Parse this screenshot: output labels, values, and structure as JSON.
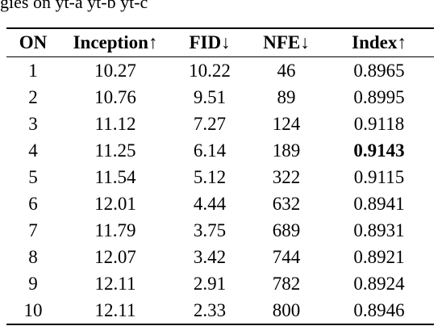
{
  "caption_fragment": "gies on yt-a yt-b yt-c",
  "table": {
    "headers": [
      "ON",
      "Inception↑",
      "FID↓",
      "NFE↓",
      "Index↑"
    ],
    "rows": [
      [
        "1",
        "10.27",
        "10.22",
        "46",
        "0.8965"
      ],
      [
        "2",
        "10.76",
        "9.51",
        "89",
        "0.8995"
      ],
      [
        "3",
        "11.12",
        "7.27",
        "124",
        "0.9118"
      ],
      [
        "4",
        "11.25",
        "6.14",
        "189",
        "0.9143"
      ],
      [
        "5",
        "11.54",
        "5.12",
        "322",
        "0.9115"
      ],
      [
        "6",
        "12.01",
        "4.44",
        "632",
        "0.8941"
      ],
      [
        "7",
        "11.79",
        "3.75",
        "689",
        "0.8931"
      ],
      [
        "8",
        "12.07",
        "3.42",
        "744",
        "0.8921"
      ],
      [
        "9",
        "12.11",
        "2.91",
        "782",
        "0.8924"
      ],
      [
        "10",
        "12.11",
        "2.33",
        "800",
        "0.8946"
      ]
    ],
    "bold_cells": [
      [
        3,
        4
      ]
    ]
  }
}
